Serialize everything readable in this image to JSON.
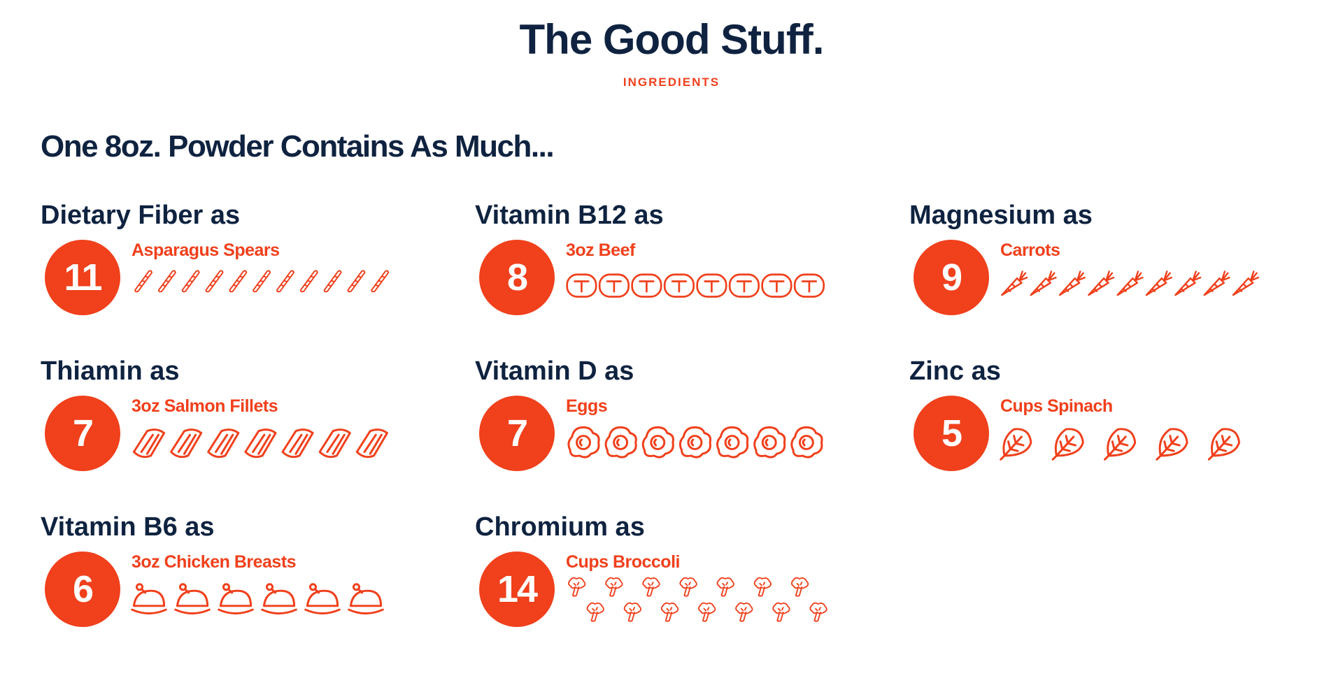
{
  "header": {
    "title": "The Good Stuff.",
    "subtitle": "INGREDIENTS"
  },
  "heading": "One 8oz. Powder Contains As Much...",
  "items": [
    {
      "nutrient": "Dietary Fiber as",
      "count": 11,
      "food": "Asparagus Spears"
    },
    {
      "nutrient": "Vitamin B12 as",
      "count": 8,
      "food": "3oz Beef"
    },
    {
      "nutrient": "Magnesium as",
      "count": 9,
      "food": "Carrots"
    },
    {
      "nutrient": "Thiamin as",
      "count": 7,
      "food": "3oz Salmon Fillets"
    },
    {
      "nutrient": "Vitamin D as",
      "count": 7,
      "food": "Eggs"
    },
    {
      "nutrient": "Zinc as",
      "count": 5,
      "food": "Cups Spinach"
    },
    {
      "nutrient": "Vitamin B6 as",
      "count": 6,
      "food": "3oz Chicken Breasts"
    },
    {
      "nutrient": "Chromium as",
      "count": 14,
      "food": "Cups Broccoli"
    }
  ]
}
